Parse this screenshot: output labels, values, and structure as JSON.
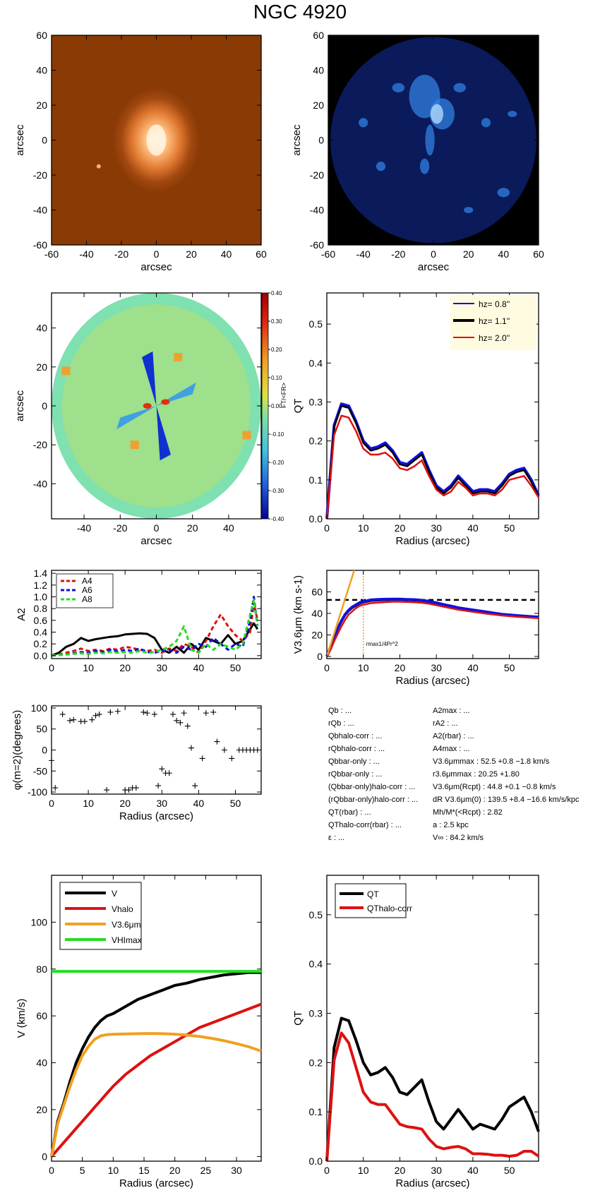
{
  "title": "NGC 4920",
  "colors": {
    "black": "#000000",
    "blue": "#1010dd",
    "red": "#dd1111",
    "green": "#22dd22",
    "orange": "#f0a020"
  },
  "panels": {
    "image_orange": {
      "xlabel": "arcsec",
      "ylabel": "arcsec",
      "xticks": [
        "-60",
        "-40",
        "-20",
        "0",
        "20",
        "40",
        "60"
      ],
      "yticks": [
        "60",
        "40",
        "20",
        "0",
        "-20",
        "-40",
        "-60"
      ]
    },
    "image_blue": {
      "xlabel": "arcsec",
      "ylabel": "arcsec",
      "xticks": [
        "-60",
        "-40",
        "-20",
        "0",
        "20",
        "40",
        "60"
      ],
      "yticks": [
        "60",
        "40",
        "20",
        "0",
        "-20",
        "-40",
        "-60"
      ]
    },
    "ratio_map": {
      "xlabel": "arcsec",
      "ylabel": "arcsec",
      "xticks": [
        "-40",
        "-20",
        "0",
        "20",
        "40"
      ],
      "yticks": [
        "40",
        "20",
        "0",
        "-20",
        "-40"
      ],
      "cbar_ticks": [
        "0.40",
        "0.30",
        "0.20",
        "0.10",
        "0.00",
        "-0.10",
        "-0.20",
        "-0.30",
        "-0.40"
      ],
      "cbar_label": "FT/<FR>"
    },
    "qt_hz": {
      "xlabel": "Radius (arcsec)",
      "ylabel": "QT",
      "legend": [
        "hz= 0.8''",
        "hz= 1.1''",
        "hz= 2.0''"
      ]
    },
    "a2": {
      "xlabel": "",
      "ylabel": "A2",
      "legend": [
        "A4",
        "A6",
        "A8"
      ]
    },
    "vel": {
      "xlabel": "Radius (arcsec)",
      "ylabel": "V3.6μm (km s-1)",
      "annotation": "rmax1/4Pr^2",
      "hline": 52.5
    },
    "phase": {
      "xlabel": "Radius (arcsec)",
      "ylabel": "φ(m=2)(degrees)"
    },
    "info": {
      "left": [
        "Qb : ...",
        "rQb : ...",
        "Qbhalo-corr : ...",
        "rQbhalo-corr : ...",
        "Qbbar-only : ...",
        "rQbbar-only : ...",
        "(Qbbar-only)halo-corr : ...",
        "(rQbbar-only)halo-corr : ...",
        "QT(rbar) : ...",
        "QThalo-corr(rbar) : ...",
        "ε : ..."
      ],
      "right": [
        "A2max : ...",
        "rA2 : ...",
        "A2(rbar) : ...",
        "A4max : ...",
        "V3.6μmmax :  52.5 +0.8 −1.8 km/s",
        "r3.6μmmax :  20.25 +1.80",
        "V3.6μm(Rcpt) :  44.8 +0.1 −0.8 km/s",
        "dR V3.6μm(0) :  139.5 +8.4 −16.6 km/s/kpc",
        "Mh/M*(<Rcpt) :  2.82",
        "a :   2.5 kpc",
        "V∞ :  84.2 km/s"
      ]
    },
    "vrot": {
      "xlabel": "Radius (arcsec)",
      "ylabel": "V (km/s)",
      "legend": [
        "V",
        "Vhalo",
        "V3.6μm",
        "VHImax"
      ]
    },
    "qt_halo": {
      "xlabel": "Radius (arcsec)",
      "ylabel": "QT",
      "legend": [
        "QT",
        "QThalo-corr"
      ]
    }
  },
  "chart_data": [
    {
      "type": "heatmap",
      "title": "",
      "xlabel": "arcsec",
      "ylabel": "arcsec",
      "xlim": [
        -60,
        60
      ],
      "ylim": [
        -60,
        60
      ],
      "xticks": [
        -60,
        -40,
        -20,
        0,
        20,
        40,
        60
      ],
      "yticks": [
        -60,
        -40,
        -20,
        0,
        20,
        40,
        60
      ],
      "colormap": "orange"
    },
    {
      "type": "heatmap",
      "title": "",
      "xlabel": "arcsec",
      "ylabel": "arcsec",
      "xlim": [
        -60,
        60
      ],
      "ylim": [
        -60,
        60
      ],
      "xticks": [
        -60,
        -40,
        -20,
        0,
        20,
        40,
        60
      ],
      "yticks": [
        -60,
        -40,
        -20,
        0,
        20,
        40,
        60
      ],
      "colormap": "blue"
    },
    {
      "type": "heatmap",
      "title": "",
      "xlabel": "arcsec",
      "ylabel": "arcsec",
      "xlim": [
        -58,
        58
      ],
      "ylim": [
        -58,
        58
      ],
      "colorbar": {
        "min": -0.4,
        "max": 0.4,
        "ticks": [
          0.4,
          0.3,
          0.2,
          0.1,
          0.0,
          -0.1,
          -0.2,
          -0.3,
          -0.4
        ]
      }
    },
    {
      "type": "line",
      "xlabel": "Radius (arcsec)",
      "ylabel": "QT",
      "xlim": [
        0,
        58
      ],
      "ylim": [
        0,
        0.58
      ],
      "x": [
        0,
        2,
        4,
        6,
        8,
        10,
        12,
        14,
        16,
        18,
        20,
        22,
        24,
        26,
        28,
        30,
        32,
        34,
        36,
        38,
        40,
        42,
        44,
        46,
        48,
        50,
        52,
        54,
        56,
        58
      ],
      "series": [
        {
          "name": "hz= 0.8''",
          "values": [
            0.0,
            0.24,
            0.295,
            0.29,
            0.25,
            0.2,
            0.18,
            0.185,
            0.195,
            0.175,
            0.145,
            0.14,
            0.155,
            0.17,
            0.125,
            0.085,
            0.07,
            0.085,
            0.11,
            0.09,
            0.07,
            0.075,
            0.075,
            0.07,
            0.09,
            0.115,
            0.125,
            0.13,
            0.1,
            0.06
          ]
        },
        {
          "name": "hz= 1.1''",
          "values": [
            0.0,
            0.235,
            0.29,
            0.285,
            0.245,
            0.195,
            0.175,
            0.18,
            0.19,
            0.17,
            0.14,
            0.135,
            0.15,
            0.165,
            0.12,
            0.08,
            0.065,
            0.08,
            0.105,
            0.085,
            0.065,
            0.07,
            0.07,
            0.065,
            0.085,
            0.11,
            0.12,
            0.125,
            0.095,
            0.057
          ]
        },
        {
          "name": "hz= 2.0''",
          "values": [
            0.0,
            0.215,
            0.265,
            0.26,
            0.225,
            0.18,
            0.165,
            0.165,
            0.17,
            0.155,
            0.13,
            0.125,
            0.135,
            0.15,
            0.11,
            0.075,
            0.06,
            0.07,
            0.095,
            0.08,
            0.06,
            0.065,
            0.065,
            0.06,
            0.075,
            0.1,
            0.105,
            0.11,
            0.085,
            0.055
          ]
        }
      ]
    },
    {
      "type": "line",
      "xlabel": "",
      "ylabel": "A2",
      "xlim": [
        0,
        57
      ],
      "ylim": [
        -0.05,
        1.45
      ],
      "yticks": [
        0.0,
        0.2,
        0.4,
        0.6,
        0.8,
        1.0,
        1.2,
        1.4
      ],
      "x": [
        0,
        2,
        4,
        6,
        8,
        10,
        12,
        14,
        16,
        18,
        20,
        22,
        24,
        26,
        28,
        30,
        32,
        34,
        36,
        38,
        40,
        42,
        44,
        46,
        48,
        50,
        52,
        54,
        55,
        56
      ],
      "series": [
        {
          "name": "A2",
          "values": [
            0.0,
            0.05,
            0.15,
            0.2,
            0.3,
            0.25,
            0.28,
            0.3,
            0.32,
            0.33,
            0.36,
            0.37,
            0.38,
            0.37,
            0.3,
            0.1,
            0.05,
            0.15,
            0.05,
            0.2,
            0.1,
            0.3,
            0.25,
            0.2,
            0.35,
            0.2,
            0.25,
            0.45,
            0.55,
            0.45
          ]
        },
        {
          "name": "A4",
          "values": [
            0.0,
            0.02,
            0.05,
            0.08,
            0.12,
            0.08,
            0.1,
            0.08,
            0.12,
            0.1,
            0.15,
            0.13,
            0.1,
            0.08,
            0.1,
            0.05,
            0.12,
            0.08,
            0.2,
            0.15,
            0.05,
            0.25,
            0.5,
            0.7,
            0.5,
            0.35,
            0.25,
            0.4,
            0.9,
            0.6
          ]
        },
        {
          "name": "A6",
          "values": [
            0.0,
            0.01,
            0.02,
            0.04,
            0.06,
            0.05,
            0.08,
            0.06,
            0.1,
            0.07,
            0.1,
            0.08,
            0.12,
            0.06,
            0.05,
            0.08,
            0.1,
            0.05,
            0.15,
            0.1,
            0.2,
            0.15,
            0.3,
            0.2,
            0.1,
            0.2,
            0.15,
            0.6,
            1.0,
            0.5
          ]
        },
        {
          "name": "A8",
          "values": [
            0.0,
            0.01,
            0.02,
            0.03,
            0.04,
            0.03,
            0.05,
            0.04,
            0.06,
            0.05,
            0.06,
            0.05,
            0.08,
            0.05,
            0.06,
            0.1,
            0.15,
            0.25,
            0.5,
            0.1,
            0.05,
            0.2,
            0.1,
            0.2,
            0.15,
            0.1,
            0.2,
            0.7,
            0.95,
            0.5
          ]
        }
      ]
    },
    {
      "type": "line",
      "xlabel": "Radius (arcsec)",
      "ylabel": "V3.6μm (km s-1)",
      "xlim": [
        0,
        58
      ],
      "ylim": [
        -2,
        80
      ],
      "x": [
        0,
        1,
        2,
        3,
        4,
        5,
        6,
        7,
        8,
        9,
        10,
        12,
        14,
        16,
        18,
        20,
        22,
        24,
        26,
        28,
        30,
        32,
        34,
        36,
        38,
        40,
        42,
        44,
        46,
        48,
        50,
        52,
        54,
        56,
        58
      ],
      "series": [
        {
          "name": "black",
          "values": [
            0,
            8,
            17,
            25,
            32,
            38,
            42,
            45,
            47,
            49,
            50,
            51.5,
            52,
            52.3,
            52.5,
            52.5,
            52.3,
            52,
            51.5,
            50.5,
            49,
            47.5,
            46,
            44.5,
            43.5,
            42.5,
            41.5,
            40.5,
            39.5,
            38.5,
            38,
            37.5,
            37,
            36.5,
            36
          ]
        },
        {
          "name": "blue",
          "values": [
            0,
            9,
            18,
            26,
            33,
            39,
            43,
            46,
            48,
            50,
            51,
            52.5,
            53,
            53.2,
            53.3,
            53.3,
            53,
            52.8,
            52.2,
            51.2,
            49.8,
            48.2,
            46.8,
            45.2,
            44.2,
            43.2,
            42.2,
            41.2,
            40.2,
            39.2,
            38.6,
            38,
            37.5,
            37,
            36.5
          ]
        },
        {
          "name": "red",
          "values": [
            0,
            6,
            14,
            21,
            28,
            34,
            39,
            42,
            45,
            47,
            48,
            49.5,
            50,
            50.5,
            50.8,
            50.8,
            50.6,
            50.3,
            49.8,
            49,
            47.6,
            46.2,
            44.8,
            43.4,
            42.4,
            41.5,
            40.6,
            39.6,
            38.8,
            38,
            37.4,
            36.9,
            36.4,
            36,
            35.5
          ]
        },
        {
          "name": "orange",
          "x": [
            0,
            7.5
          ],
          "values": [
            0,
            80
          ]
        }
      ],
      "hline": 52.5,
      "vline": 10
    },
    {
      "type": "scatter",
      "xlabel": "Radius (arcsec)",
      "ylabel": "φ(m=2)(degrees)",
      "xlim": [
        0,
        57
      ],
      "ylim": [
        -105,
        105
      ],
      "yticks": [
        -100,
        -50,
        0,
        50,
        100
      ],
      "x": [
        0,
        1,
        3,
        5,
        6,
        8,
        9,
        11,
        12,
        13,
        15,
        16,
        18,
        20,
        21,
        22,
        23,
        25,
        26,
        28,
        29,
        30,
        31,
        32,
        33,
        34,
        35,
        36,
        37,
        38,
        39,
        41,
        42,
        44,
        45,
        47,
        49,
        51,
        52,
        53,
        54,
        55,
        56
      ],
      "values": [
        -25,
        -90,
        85,
        70,
        72,
        68,
        68,
        72,
        82,
        85,
        -95,
        90,
        92,
        -95,
        -95,
        -90,
        -90,
        90,
        88,
        85,
        -85,
        -45,
        -55,
        -55,
        85,
        70,
        65,
        88,
        57,
        5,
        -85,
        -20,
        88,
        90,
        20,
        0,
        -20,
        0,
        0,
        0,
        0,
        0,
        0
      ]
    },
    {
      "type": "line",
      "xlabel": "Radius (arcsec)",
      "ylabel": "V (km/s)",
      "xlim": [
        0,
        34
      ],
      "ylim": [
        -2,
        120
      ],
      "x": [
        0,
        1,
        2,
        3,
        4,
        5,
        6,
        7,
        8,
        9,
        10,
        12,
        14,
        16,
        18,
        20,
        22,
        24,
        26,
        28,
        30,
        32,
        34
      ],
      "series": [
        {
          "name": "V",
          "values": [
            0,
            15,
            23,
            32,
            40,
            46,
            51,
            55,
            58,
            60,
            61,
            64,
            67,
            69,
            71,
            73,
            74,
            75.5,
            76.5,
            77.5,
            78,
            78.5,
            78.5
          ]
        },
        {
          "name": "Vhalo",
          "values": [
            0,
            3,
            6,
            9,
            12,
            15,
            18,
            21,
            24,
            27,
            30,
            35,
            39,
            43,
            46,
            49,
            52,
            55,
            57,
            59,
            61,
            63,
            65
          ]
        },
        {
          "name": "V3.6μm",
          "values": [
            0,
            14,
            22,
            30,
            37,
            43,
            47,
            50,
            51.5,
            52,
            52.2,
            52.3,
            52.4,
            52.5,
            52.4,
            52.2,
            51.8,
            51.2,
            50.4,
            49.4,
            48.2,
            46.8,
            45
          ]
        },
        {
          "name": "VHImax",
          "values": [
            79,
            79,
            79,
            79,
            79,
            79,
            79,
            79,
            79,
            79,
            79,
            79,
            79,
            79,
            79,
            79,
            79,
            79,
            79,
            79,
            79,
            79,
            79
          ]
        }
      ]
    },
    {
      "type": "line",
      "xlabel": "Radius (arcsec)",
      "ylabel": "QT",
      "xlim": [
        0,
        58
      ],
      "ylim": [
        0,
        0.58
      ],
      "x": [
        0,
        2,
        4,
        6,
        8,
        10,
        12,
        14,
        16,
        18,
        20,
        22,
        24,
        26,
        28,
        30,
        32,
        34,
        36,
        38,
        40,
        42,
        44,
        46,
        48,
        50,
        52,
        54,
        56,
        58
      ],
      "series": [
        {
          "name": "QT",
          "values": [
            0.0,
            0.23,
            0.29,
            0.285,
            0.245,
            0.2,
            0.175,
            0.18,
            0.19,
            0.17,
            0.14,
            0.135,
            0.15,
            0.165,
            0.12,
            0.08,
            0.065,
            0.085,
            0.105,
            0.085,
            0.065,
            0.075,
            0.07,
            0.065,
            0.085,
            0.11,
            0.12,
            0.13,
            0.1,
            0.06
          ]
        },
        {
          "name": "QThalo-corr",
          "values": [
            0.0,
            0.205,
            0.26,
            0.24,
            0.19,
            0.14,
            0.12,
            0.115,
            0.115,
            0.095,
            0.075,
            0.07,
            0.068,
            0.065,
            0.045,
            0.03,
            0.025,
            0.028,
            0.03,
            0.025,
            0.015,
            0.015,
            0.014,
            0.012,
            0.012,
            0.01,
            0.012,
            0.02,
            0.02,
            0.01
          ]
        }
      ]
    }
  ]
}
